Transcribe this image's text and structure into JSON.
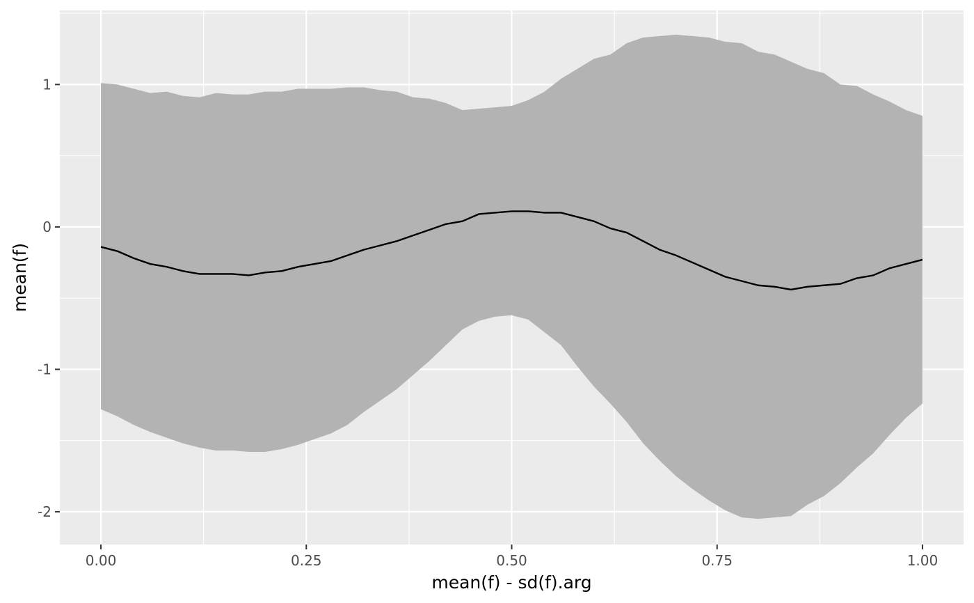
{
  "chart_data": {
    "type": "area",
    "title": "",
    "xlabel": "mean(f) - sd(f).arg",
    "ylabel": "mean(f)",
    "xlim": [
      -0.05,
      1.05
    ],
    "ylim": [
      -2.23,
      1.52
    ],
    "grid": true,
    "legend": "none",
    "xticks": [
      {
        "value": 0.0,
        "label": "0.00"
      },
      {
        "value": 0.25,
        "label": "0.25"
      },
      {
        "value": 0.5,
        "label": "0.50"
      },
      {
        "value": 0.75,
        "label": "0.75"
      },
      {
        "value": 1.0,
        "label": "1.00"
      }
    ],
    "yticks": [
      {
        "value": -2,
        "label": "-2"
      },
      {
        "value": -1,
        "label": "-1"
      },
      {
        "value": 0,
        "label": "0"
      },
      {
        "value": 1,
        "label": "1"
      }
    ],
    "x": [
      0.0,
      0.02,
      0.04,
      0.06,
      0.08,
      0.1,
      0.12,
      0.14,
      0.16,
      0.18,
      0.2,
      0.22,
      0.24,
      0.26,
      0.28,
      0.3,
      0.32,
      0.34,
      0.36,
      0.38,
      0.4,
      0.42,
      0.44,
      0.46,
      0.48,
      0.5,
      0.52,
      0.54,
      0.56,
      0.58,
      0.6,
      0.62,
      0.64,
      0.66,
      0.68,
      0.7,
      0.72,
      0.74,
      0.76,
      0.78,
      0.8,
      0.82,
      0.84,
      0.86,
      0.88,
      0.9,
      0.92,
      0.94,
      0.96,
      0.98,
      1.0
    ],
    "series": [
      {
        "role": "mean",
        "values": [
          -0.14,
          -0.17,
          -0.22,
          -0.26,
          -0.28,
          -0.31,
          -0.33,
          -0.33,
          -0.33,
          -0.34,
          -0.32,
          -0.31,
          -0.28,
          -0.26,
          -0.24,
          -0.2,
          -0.16,
          -0.13,
          -0.1,
          -0.06,
          -0.02,
          0.02,
          0.04,
          0.09,
          0.1,
          0.11,
          0.11,
          0.1,
          0.1,
          0.07,
          0.04,
          -0.01,
          -0.04,
          -0.1,
          -0.16,
          -0.2,
          -0.25,
          -0.3,
          -0.35,
          -0.38,
          -0.41,
          -0.42,
          -0.44,
          -0.42,
          -0.41,
          -0.4,
          -0.36,
          -0.34,
          -0.29,
          -0.26,
          -0.23
        ]
      },
      {
        "role": "upper",
        "values": [
          1.01,
          1.0,
          0.97,
          0.94,
          0.95,
          0.92,
          0.91,
          0.94,
          0.93,
          0.93,
          0.95,
          0.95,
          0.97,
          0.97,
          0.97,
          0.98,
          0.98,
          0.96,
          0.95,
          0.91,
          0.9,
          0.87,
          0.82,
          0.83,
          0.84,
          0.85,
          0.89,
          0.95,
          1.04,
          1.11,
          1.18,
          1.21,
          1.29,
          1.33,
          1.34,
          1.35,
          1.34,
          1.33,
          1.3,
          1.29,
          1.23,
          1.21,
          1.16,
          1.11,
          1.08,
          1.0,
          0.99,
          0.93,
          0.88,
          0.82,
          0.78
        ]
      },
      {
        "role": "lower",
        "values": [
          -1.28,
          -1.33,
          -1.39,
          -1.44,
          -1.48,
          -1.52,
          -1.55,
          -1.57,
          -1.57,
          -1.58,
          -1.58,
          -1.56,
          -1.53,
          -1.49,
          -1.45,
          -1.39,
          -1.3,
          -1.22,
          -1.14,
          -1.04,
          -0.94,
          -0.83,
          -0.72,
          -0.66,
          -0.63,
          -0.62,
          -0.65,
          -0.74,
          -0.83,
          -0.98,
          -1.12,
          -1.24,
          -1.37,
          -1.52,
          -1.64,
          -1.75,
          -1.84,
          -1.92,
          -1.99,
          -2.04,
          -2.05,
          -2.04,
          -2.03,
          -1.95,
          -1.89,
          -1.8,
          -1.69,
          -1.59,
          -1.46,
          -1.34,
          -1.24
        ]
      }
    ],
    "colors": {
      "panel": "#ebebeb",
      "grid": "#ffffff",
      "ribbon": "#b3b3b3",
      "line": "#000000",
      "tick": "#333333"
    }
  }
}
